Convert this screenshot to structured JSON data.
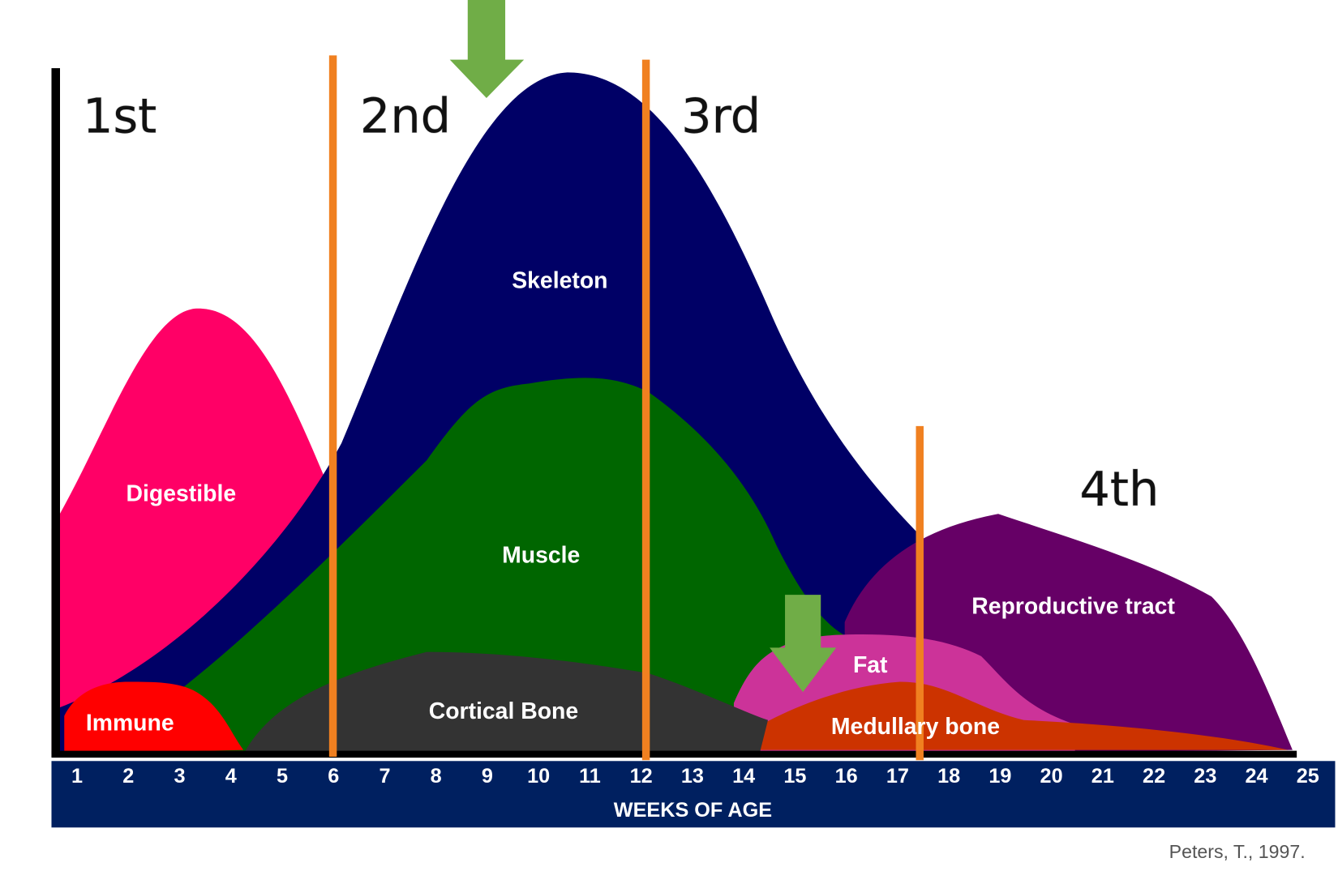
{
  "phases": [
    "1st",
    "2nd",
    "3rd",
    "4th"
  ],
  "regions": {
    "skeleton": "Skeleton",
    "digestible": "Digestible",
    "muscle": "Muscle",
    "cortical_bone": "Cortical Bone",
    "immune": "Immune",
    "fat": "Fat",
    "medullary_bone": "Medullary bone",
    "reproductive_tract": "Reproductive tract"
  },
  "weeks": [
    "1",
    "2",
    "3",
    "4",
    "5",
    "6",
    "7",
    "8",
    "9",
    "10",
    "11",
    "12",
    "13",
    "14",
    "15",
    "16",
    "17",
    "18",
    "19",
    "20",
    "21",
    "22",
    "23",
    "24",
    "25"
  ],
  "x_axis_label": "WEEKS OF AGE",
  "source": "Peters, T., 1997."
}
